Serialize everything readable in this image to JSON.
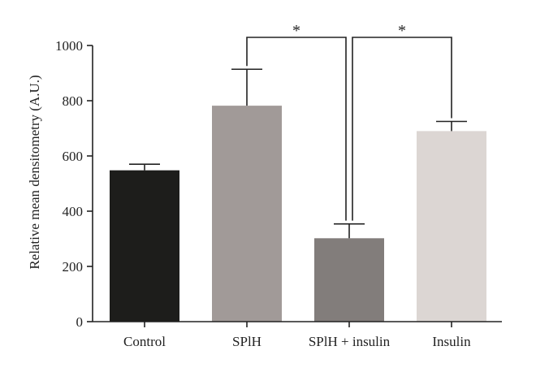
{
  "chart_data": {
    "type": "bar",
    "title": "",
    "xlabel": "",
    "ylabel": "Relative mean densitometry (A.U.)",
    "ylim": [
      0,
      1000
    ],
    "yticks": [
      0,
      200,
      400,
      600,
      800,
      1000
    ],
    "categories": [
      "Control",
      "SPlH",
      "SPlH + insulin",
      "Insulin"
    ],
    "values": [
      548,
      782,
      302,
      690
    ],
    "errors": [
      22,
      132,
      52,
      35
    ],
    "colors": [
      "#1d1d1b",
      "#a19a98",
      "#827d7b",
      "#dcd6d3"
    ],
    "grid": false,
    "legend": "none",
    "significance": [
      {
        "from": 1,
        "to": 2,
        "label": "*"
      },
      {
        "from": 2,
        "to": 3,
        "label": "*"
      }
    ]
  }
}
